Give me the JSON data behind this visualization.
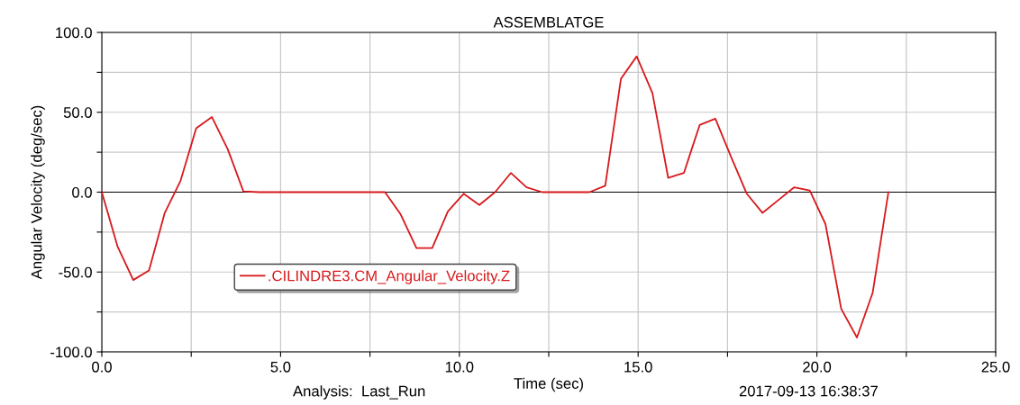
{
  "chart_data": {
    "type": "line",
    "title": "ASSEMBLATGE",
    "xlabel": "Time (sec)",
    "ylabel": "Angular Velocity (deg/sec)",
    "annotations": [
      "Analysis:  Last_Run",
      "2017-09-13 16:38:37"
    ],
    "series": [
      {
        "name": ".CILINDRE3.CM_Angular_Velocity.Z",
        "color": "#d7191c",
        "x": [
          0,
          0.44,
          0.88,
          1.32,
          1.76,
          2.2,
          2.64,
          3.08,
          3.52,
          3.96,
          4.4,
          7.92,
          8.36,
          8.8,
          9.24,
          9.68,
          10.12,
          10.56,
          11.0,
          11.44,
          11.88,
          12.32,
          13.64,
          14.08,
          14.52,
          14.96,
          15.4,
          15.84,
          16.28,
          16.72,
          17.16,
          17.6,
          18.04,
          18.48,
          18.92,
          19.36,
          19.8,
          20.24,
          20.68,
          21.12,
          21.56,
          22.0
        ],
        "values": [
          0,
          -34,
          -55,
          -49,
          -13,
          7,
          40,
          47,
          27,
          0.5,
          0,
          0,
          -14,
          -35,
          -35,
          -12,
          -1,
          -8,
          0,
          12,
          3,
          0,
          0,
          4,
          71,
          85,
          62,
          9,
          12,
          42,
          46,
          22,
          -1,
          -13,
          -5,
          3,
          1,
          -20,
          -73,
          -91,
          -63,
          0
        ]
      }
    ],
    "xlim": [
      0,
      25
    ],
    "ylim": [
      -100,
      100
    ],
    "xticks": [
      {
        "value": 0,
        "label": "0.0"
      },
      {
        "value": 2.5,
        "label": null
      },
      {
        "value": 5,
        "label": "5.0"
      },
      {
        "value": 7.5,
        "label": null
      },
      {
        "value": 10,
        "label": "10.0"
      },
      {
        "value": 12.5,
        "label": null
      },
      {
        "value": 15,
        "label": "15.0"
      },
      {
        "value": 17.5,
        "label": null
      },
      {
        "value": 20,
        "label": "20.0"
      },
      {
        "value": 22.5,
        "label": null
      },
      {
        "value": 25,
        "label": "25.0"
      }
    ],
    "yticks": [
      {
        "value": -100,
        "label": "-100.0"
      },
      {
        "value": -75,
        "label": null
      },
      {
        "value": -50,
        "label": "-50.0"
      },
      {
        "value": -25,
        "label": null
      },
      {
        "value": 0,
        "label": "0.0"
      },
      {
        "value": 25,
        "label": null
      },
      {
        "value": 50,
        "label": "50.0"
      },
      {
        "value": 75,
        "label": null
      },
      {
        "value": 100,
        "label": "100.0"
      }
    ],
    "ref_lines": [
      {
        "axis": "y",
        "value": 0,
        "color": "#000000"
      }
    ],
    "grid": true,
    "legend": "bottom left",
    "line_style": "solid",
    "marker": "none"
  }
}
